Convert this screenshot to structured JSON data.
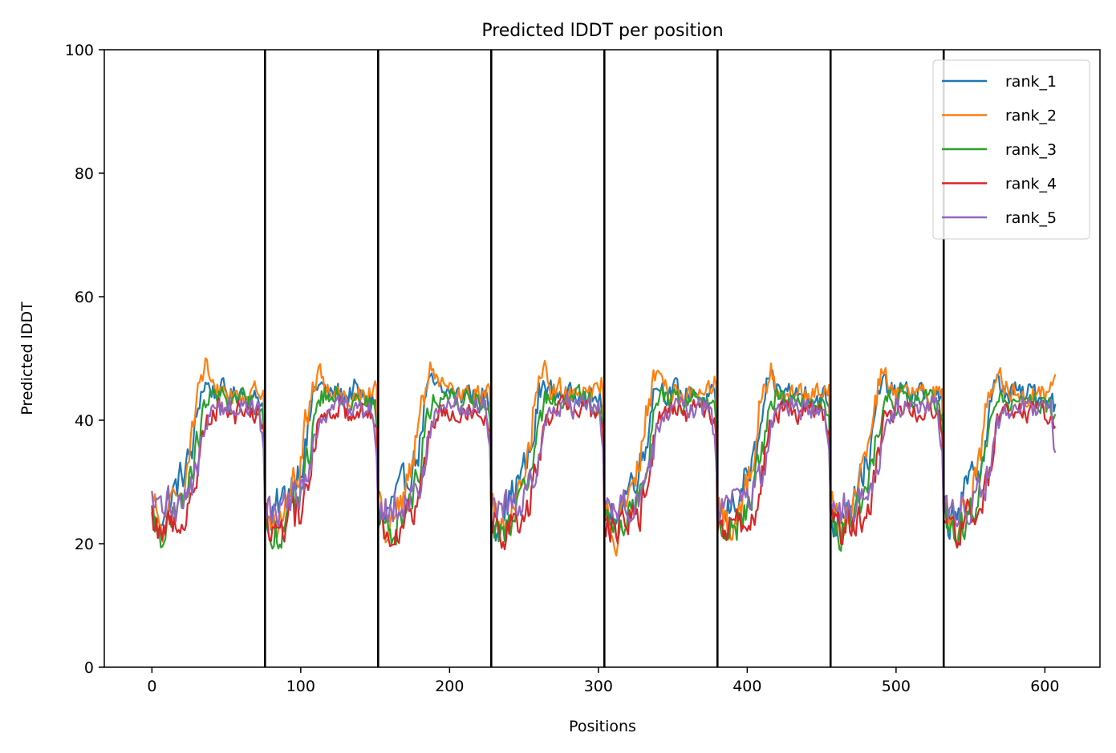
{
  "chart_data": {
    "type": "line",
    "title": "Predicted lDDT per position",
    "xlabel": "Positions",
    "ylabel": "Predicted lDDT",
    "xlim": [
      -32,
      637
    ],
    "ylim": [
      0,
      100
    ],
    "xticks": [
      0,
      100,
      200,
      300,
      400,
      500,
      600
    ],
    "yticks": [
      0,
      20,
      40,
      60,
      80,
      100
    ],
    "grid": false,
    "legend_position": "top-right",
    "chain_boundaries": [
      76,
      152,
      228,
      304,
      380,
      456,
      532
    ],
    "segment_length": 76,
    "num_positions": 608,
    "profile_positions": [
      0,
      4,
      8,
      12,
      16,
      20,
      24,
      28,
      32,
      36,
      40,
      44,
      48,
      52,
      56,
      60,
      64,
      68,
      72,
      75
    ],
    "series": [
      {
        "name": "rank_1",
        "color": "#1f77b4",
        "profile": [
          24,
          23,
          26,
          27,
          29,
          31,
          33,
          36,
          44,
          46,
          45,
          44,
          45,
          44,
          44,
          45,
          44,
          43,
          44,
          42
        ]
      },
      {
        "name": "rank_2",
        "color": "#ff7f0e",
        "profile": [
          27,
          24,
          21,
          25,
          27,
          30,
          33,
          41,
          45,
          49,
          45,
          45,
          45,
          44,
          44,
          44,
          44,
          44,
          45,
          46
        ]
      },
      {
        "name": "rank_3",
        "color": "#2ca02c",
        "profile": [
          24,
          22,
          22,
          23,
          24,
          26,
          29,
          33,
          38,
          43,
          44,
          43,
          44,
          43,
          43,
          44,
          43,
          43,
          42,
          40
        ]
      },
      {
        "name": "rank_4",
        "color": "#d62728",
        "profile": [
          24,
          23,
          22,
          23,
          24,
          24,
          25,
          28,
          34,
          40,
          41,
          42,
          42,
          42,
          41,
          42,
          42,
          41,
          41,
          38
        ]
      },
      {
        "name": "rank_5",
        "color": "#9467bd",
        "profile": [
          26,
          25,
          26,
          27,
          26,
          27,
          29,
          30,
          34,
          39,
          41,
          42,
          42,
          43,
          42,
          42,
          42,
          42,
          42,
          34
        ]
      }
    ]
  }
}
